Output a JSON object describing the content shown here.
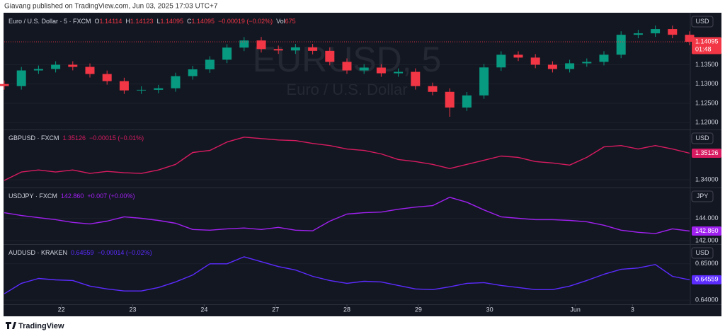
{
  "header": {
    "publisher": "Giavang published on TradingView.com, Jun 03, 2025 17:03 UTC+7",
    "brand": "TradingView"
  },
  "chart_data": [
    {
      "type": "candlestick",
      "title": "Euro / U.S. Dollar · 5 · FXCM",
      "ohlc": [
        [
          "O",
          "1.14114"
        ],
        [
          "H",
          "1.14123"
        ],
        [
          "L",
          "1.14095"
        ],
        [
          "C",
          "1.14095"
        ]
      ],
      "change": "−0.00019 (−0.02%)",
      "volume_label": "Vol",
      "volume": 675,
      "watermark": "EURUSD, 5",
      "watermark_subtitle": "Euro / U.S. Dollar",
      "currency": "USD",
      "price_label": 1.14095,
      "countdown": "01:48",
      "up_color": "#089981",
      "down_color": "#f23645",
      "x": [
        0.2,
        0.44,
        0.68,
        0.92,
        1.16,
        1.4,
        1.64,
        1.88,
        2.12,
        2.36,
        2.6,
        2.84,
        3.08,
        3.32,
        3.56,
        3.8,
        4.04,
        4.28,
        4.52,
        4.76,
        5.0,
        5.24,
        5.48,
        5.72,
        5.96,
        6.2,
        6.44,
        6.68,
        6.92,
        7.16,
        7.4,
        7.64,
        7.88,
        8.12,
        8.36,
        8.6,
        8.84,
        9.08,
        9.32,
        9.56,
        9.8
      ],
      "open": [
        1.13,
        1.12945,
        1.13352,
        1.13389,
        1.135,
        1.13444,
        1.13259,
        1.13074,
        1.12834,
        1.1285,
        1.12889,
        1.13204,
        1.1338,
        1.1363,
        1.13944,
        1.14129,
        1.13907,
        1.1387,
        1.1395,
        1.1386,
        1.13574,
        1.13352,
        1.13426,
        1.13278,
        1.13315,
        1.12945,
        1.12797,
        1.1239,
        1.12704,
        1.1343,
        1.13759,
        1.13685,
        1.135,
        1.13389,
        1.13537,
        1.13574,
        1.1376,
        1.14277,
        1.14314,
        1.14425,
        1.14277
      ],
      "high": [
        1.1309,
        1.13442,
        1.13479,
        1.1359,
        1.1359,
        1.13534,
        1.13349,
        1.13164,
        1.1294,
        1.12979,
        1.13294,
        1.1347,
        1.1372,
        1.14034,
        1.14219,
        1.14219,
        1.13997,
        1.1404,
        1.1404,
        1.1395,
        1.13664,
        1.13516,
        1.13516,
        1.13405,
        1.13405,
        1.13035,
        1.12887,
        1.12794,
        1.1352,
        1.13849,
        1.13849,
        1.13775,
        1.1359,
        1.13627,
        1.13664,
        1.1385,
        1.14367,
        1.14404,
        1.14515,
        1.14515,
        1.14367
      ],
      "low": [
        1.12855,
        1.12855,
        1.13262,
        1.13299,
        1.13354,
        1.13169,
        1.12984,
        1.12744,
        1.12744,
        1.1276,
        1.12799,
        1.13114,
        1.1329,
        1.1354,
        1.13854,
        1.13817,
        1.1378,
        1.1378,
        1.1377,
        1.13484,
        1.13262,
        1.13262,
        1.13188,
        1.13188,
        1.12855,
        1.12707,
        1.1215,
        1.123,
        1.12614,
        1.1334,
        1.13595,
        1.1341,
        1.13299,
        1.13299,
        1.13447,
        1.13484,
        1.1367,
        1.14187,
        1.14224,
        1.14187,
        1.14005
      ],
      "close": [
        1.12945,
        1.13352,
        1.13389,
        1.135,
        1.13444,
        1.13259,
        1.13074,
        1.12834,
        1.1285,
        1.12889,
        1.13204,
        1.1338,
        1.1363,
        1.13944,
        1.14129,
        1.13907,
        1.1387,
        1.1395,
        1.1386,
        1.13574,
        1.13352,
        1.13426,
        1.13278,
        1.13315,
        1.12945,
        1.12797,
        1.1239,
        1.12704,
        1.1343,
        1.13759,
        1.13685,
        1.135,
        1.13389,
        1.13537,
        1.13574,
        1.1376,
        1.14277,
        1.14314,
        1.14425,
        1.14277,
        1.14095
      ],
      "xlim": [
        0.2,
        9.8
      ],
      "ylim": [
        1.1182,
        1.1483
      ],
      "yticks": [
        {
          "value": 1.135,
          "label": "1.13500"
        },
        {
          "value": 1.13,
          "label": "1.13000"
        },
        {
          "value": 1.125,
          "label": "1.12500"
        },
        {
          "value": 1.12,
          "label": "1.12000"
        }
      ]
    },
    {
      "type": "line",
      "title": "GBPUSD · FXCM",
      "last": "1.35126",
      "change": "−0.00015 (−0.01%)",
      "currency": "USD",
      "price_label": 1.35126,
      "x": [
        0.2,
        0.44,
        0.68,
        0.92,
        1.16,
        1.4,
        1.64,
        1.88,
        2.12,
        2.36,
        2.6,
        2.84,
        3.08,
        3.32,
        3.56,
        3.8,
        4.04,
        4.28,
        4.52,
        4.76,
        5.0,
        5.24,
        5.48,
        5.72,
        5.96,
        6.2,
        6.44,
        6.68,
        6.92,
        7.16,
        7.4,
        7.64,
        7.88,
        8.12,
        8.36,
        8.6,
        8.84,
        9.08,
        9.32,
        9.56,
        9.8
      ],
      "series": [
        {
          "name": "GBPUSD",
          "color": "#d81b60",
          "values": [
            1.3397,
            1.34326,
            1.34414,
            1.34326,
            1.34414,
            1.34266,
            1.34355,
            1.34296,
            1.34266,
            1.34414,
            1.34651,
            1.35154,
            1.35243,
            1.35598,
            1.35806,
            1.35746,
            1.35687,
            1.35658,
            1.35539,
            1.3545,
            1.35302,
            1.35243,
            1.35095,
            1.34858,
            1.3477,
            1.34651,
            1.34474,
            1.34651,
            1.34829,
            1.35006,
            1.34947,
            1.3477,
            1.3471,
            1.34622,
            1.34947,
            1.35391,
            1.3545,
            1.35302,
            1.3545,
            1.35302,
            1.35126
          ]
        }
      ],
      "xlim": [
        0.2,
        9.8
      ],
      "ylim": [
        1.3367,
        1.361
      ],
      "yticks": [
        {
          "value": 1.34,
          "label": "1.34000"
        }
      ]
    },
    {
      "type": "line",
      "title": "USDJPY · FXCM",
      "last": "142.860",
      "change": "+0.007 (+0.00%)",
      "currency": "JPY",
      "price_label": {
        "value": 142.86,
        "label": "142.860"
      },
      "x": [
        0.2,
        0.44,
        0.68,
        0.92,
        1.16,
        1.4,
        1.64,
        1.88,
        2.12,
        2.36,
        2.6,
        2.84,
        3.08,
        3.32,
        3.56,
        3.8,
        4.04,
        4.28,
        4.52,
        4.76,
        5.0,
        5.24,
        5.48,
        5.72,
        5.96,
        6.2,
        6.44,
        6.68,
        6.92,
        7.16,
        7.4,
        7.64,
        7.88,
        8.12,
        8.36,
        8.6,
        8.84,
        9.08,
        9.32,
        9.56,
        9.8
      ],
      "series": [
        {
          "name": "USDJPY",
          "color": "#a020f0",
          "values": [
            144.5,
            144.25,
            144.06,
            143.88,
            143.63,
            143.5,
            143.75,
            144.13,
            144.0,
            143.81,
            143.56,
            143.0,
            142.94,
            143.06,
            143.13,
            143.0,
            143.19,
            142.94,
            142.88,
            143.75,
            144.38,
            144.5,
            144.56,
            144.81,
            145.0,
            145.13,
            145.88,
            145.44,
            144.75,
            144.13,
            144.0,
            143.88,
            143.88,
            143.81,
            143.69,
            143.38,
            142.94,
            142.75,
            142.63,
            143.06,
            142.86
          ]
        }
      ],
      "xlim": [
        0.2,
        9.8
      ],
      "ylim": [
        141.69,
        146.69
      ],
      "yticks": [
        {
          "value": 144,
          "label": "144.000"
        },
        {
          "value": 142,
          "label": "142.000"
        }
      ]
    },
    {
      "type": "line",
      "title": "AUDUSD · KRAKEN",
      "last": "0.64559",
      "change": "−0.00014 (−0.02%)",
      "currency": "USD",
      "price_label": 0.64559,
      "x": [
        0.2,
        0.44,
        0.68,
        0.92,
        1.16,
        1.4,
        1.64,
        1.88,
        2.12,
        2.36,
        2.6,
        2.84,
        3.08,
        3.32,
        3.56,
        3.8,
        4.04,
        4.28,
        4.52,
        4.76,
        5.0,
        5.24,
        5.48,
        5.72,
        5.96,
        6.2,
        6.44,
        6.68,
        6.92,
        7.16,
        7.4,
        7.64,
        7.88,
        8.12,
        8.36,
        8.6,
        8.84,
        9.08,
        9.32,
        9.56,
        9.8
      ],
      "series": [
        {
          "name": "AUDUSD",
          "color": "#5b2bff",
          "values": [
            0.64173,
            0.64461,
            0.64595,
            0.64557,
            0.64538,
            0.64384,
            0.64307,
            0.6425,
            0.6425,
            0.64346,
            0.64499,
            0.64691,
            0.64998,
            0.64998,
            0.6519,
            0.65056,
            0.64922,
            0.64826,
            0.64653,
            0.64538,
            0.64461,
            0.64518,
            0.64499,
            0.64403,
            0.64307,
            0.64288,
            0.64365,
            0.64461,
            0.6448,
            0.64403,
            0.64346,
            0.64288,
            0.64288,
            0.64384,
            0.64538,
            0.6471,
            0.64845,
            0.64883,
            0.64979,
            0.64653,
            0.64559
          ]
        }
      ],
      "xlim": [
        0.2,
        9.8
      ],
      "ylim": [
        0.63885,
        0.65519
      ],
      "yticks": [
        {
          "value": 0.65,
          "label": "0.65000"
        },
        {
          "value": 0.64,
          "label": "0.64000"
        }
      ],
      "xticks": [
        {
          "value": 1,
          "label": "22"
        },
        {
          "value": 2,
          "label": "23"
        },
        {
          "value": 3,
          "label": "24"
        },
        {
          "value": 4,
          "label": "27"
        },
        {
          "value": 5,
          "label": "28"
        },
        {
          "value": 6,
          "label": "29"
        },
        {
          "value": 7,
          "label": "30"
        },
        {
          "value": 8.2,
          "label": "Jun"
        },
        {
          "value": 9,
          "label": "3"
        }
      ]
    }
  ]
}
